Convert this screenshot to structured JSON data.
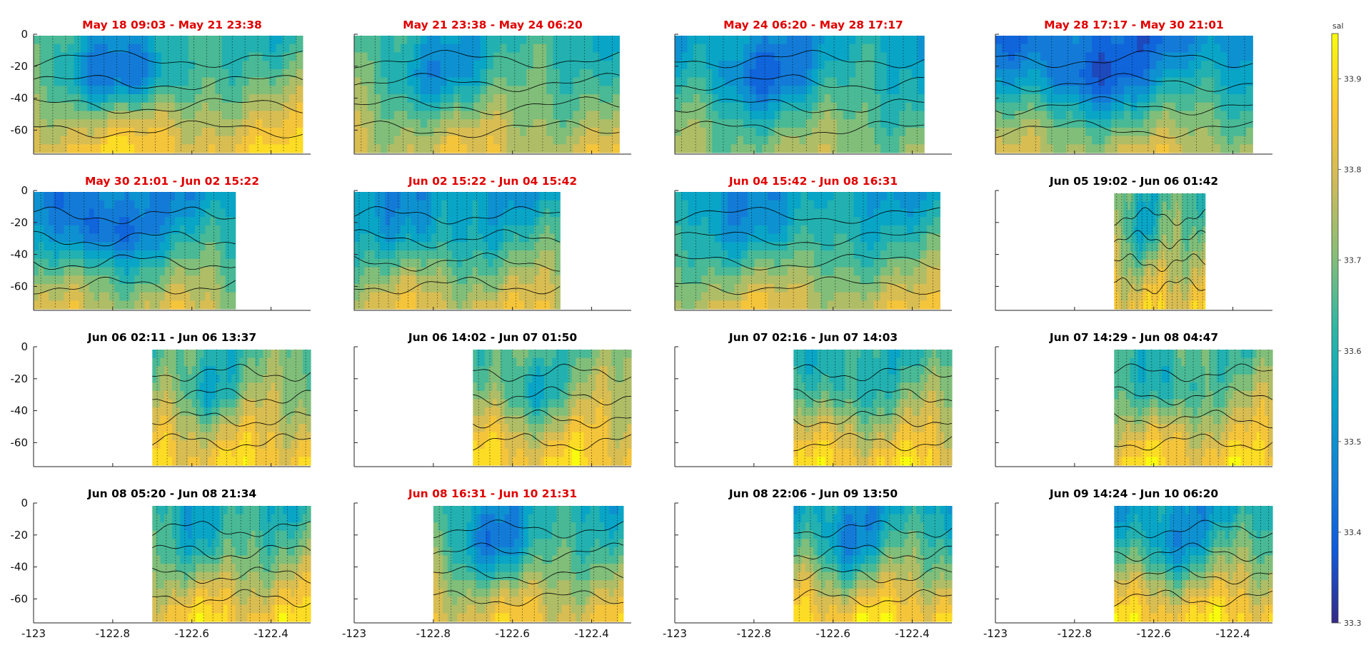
{
  "figure": {
    "colormap_hex": [
      "#352a87",
      "#0f5cdd",
      "#1481d6",
      "#06a4ca",
      "#2eb7a4",
      "#87bf77",
      "#d1bb59",
      "#fec832",
      "#f9fb0e"
    ],
    "contour_line_color": "#000000",
    "title_color_red": "#e00000",
    "title_color_black": "#000000"
  },
  "chart_data": {
    "type": "heatmap",
    "shared_axes": {
      "xlim": [
        -123,
        -122.3
      ],
      "ylim": [
        -75,
        0
      ],
      "xticks": [
        -123,
        -122.8,
        -122.6,
        -122.4
      ],
      "xtick_labels": [
        "-123",
        "-122.8",
        "-122.6",
        "-122.4"
      ],
      "yticks": [
        0,
        -20,
        -40,
        -60
      ],
      "ytick_labels": [
        "0",
        "-20",
        "-40",
        "-60"
      ]
    },
    "colorbar": {
      "label": "sal",
      "range": [
        33.3,
        33.95
      ],
      "ticks": [
        33.3,
        33.4,
        33.5,
        33.6,
        33.7,
        33.8,
        33.9
      ],
      "tick_labels": [
        "33.3",
        "33.4",
        "33.5",
        "33.6",
        "33.7",
        "33.8",
        "33.9"
      ]
    },
    "panels": [
      {
        "title": "May 18 09:03 - May 21 23:38",
        "title_color": "red",
        "x_range": [
          -123,
          -122.32
        ],
        "salinity_top": 33.62,
        "salinity_bottom": 33.86,
        "min_salinity": 33.42
      },
      {
        "title": "May 21 23:38 - May 24 06:20",
        "title_color": "red",
        "x_range": [
          -123,
          -122.33
        ],
        "salinity_top": 33.6,
        "salinity_bottom": 33.8,
        "min_salinity": 33.52
      },
      {
        "title": "May 24 06:20 - May 28 17:17",
        "title_color": "red",
        "x_range": [
          -123,
          -122.37
        ],
        "salinity_top": 33.54,
        "salinity_bottom": 33.73,
        "min_salinity": 33.43
      },
      {
        "title": "May 28 17:17 - May 30 21:01",
        "title_color": "red",
        "x_range": [
          -123,
          -122.35
        ],
        "salinity_top": 33.45,
        "salinity_bottom": 33.78,
        "min_salinity": 33.34
      },
      {
        "title": "May 30 21:01 - Jun 02 15:22",
        "title_color": "red",
        "x_range": [
          -123,
          -122.49
        ],
        "salinity_top": 33.5,
        "salinity_bottom": 33.78,
        "min_salinity": 33.35
      },
      {
        "title": "Jun 02 15:22 - Jun 04 15:42",
        "title_color": "red",
        "x_range": [
          -123,
          -122.48
        ],
        "salinity_top": 33.53,
        "salinity_bottom": 33.81,
        "min_salinity": 33.48
      },
      {
        "title": "Jun 04 15:42 - Jun 08 16:31",
        "title_color": "red",
        "x_range": [
          -123,
          -122.33
        ],
        "salinity_top": 33.54,
        "salinity_bottom": 33.8,
        "min_salinity": 33.5
      },
      {
        "title": "Jun 05 19:02 - Jun 06 01:42",
        "title_color": "black",
        "x_range": [
          -122.7,
          -122.47
        ],
        "salinity_top": 33.65,
        "salinity_bottom": 33.85,
        "min_salinity": 33.58
      },
      {
        "title": "Jun 06 02:11 - Jun 06 13:37",
        "title_color": "black",
        "x_range": [
          -122.7,
          -122.3
        ],
        "salinity_top": 33.66,
        "salinity_bottom": 33.88,
        "min_salinity": 33.58
      },
      {
        "title": "Jun 06 14:02 - Jun 07 01:50",
        "title_color": "black",
        "x_range": [
          -122.7,
          -122.3
        ],
        "salinity_top": 33.68,
        "salinity_bottom": 33.88,
        "min_salinity": 33.56
      },
      {
        "title": "Jun 07 02:16 - Jun 07 14:03",
        "title_color": "black",
        "x_range": [
          -122.7,
          -122.3
        ],
        "salinity_top": 33.62,
        "salinity_bottom": 33.88,
        "min_salinity": 33.55
      },
      {
        "title": "Jun 07 14:29 - Jun 08 04:47",
        "title_color": "black",
        "x_range": [
          -122.7,
          -122.3
        ],
        "salinity_top": 33.66,
        "salinity_bottom": 33.88,
        "min_salinity": 33.55
      },
      {
        "title": "Jun 08 05:20 - Jun 08 21:34",
        "title_color": "black",
        "x_range": [
          -122.7,
          -122.3
        ],
        "salinity_top": 33.6,
        "salinity_bottom": 33.88,
        "min_salinity": 33.55
      },
      {
        "title": "Jun 08 16:31 - Jun 10 21:31",
        "title_color": "red",
        "x_range": [
          -122.8,
          -122.32
        ],
        "salinity_top": 33.58,
        "salinity_bottom": 33.84,
        "min_salinity": 33.45
      },
      {
        "title": "Jun 08 22:06 - Jun 09 13:50",
        "title_color": "black",
        "x_range": [
          -122.7,
          -122.3
        ],
        "salinity_top": 33.55,
        "salinity_bottom": 33.9,
        "min_salinity": 33.45
      },
      {
        "title": "Jun 09 14:24 - Jun 10 06:20",
        "title_color": "black",
        "x_range": [
          -122.7,
          -122.3
        ],
        "salinity_top": 33.55,
        "salinity_bottom": 33.9,
        "min_salinity": 33.45
      }
    ]
  }
}
